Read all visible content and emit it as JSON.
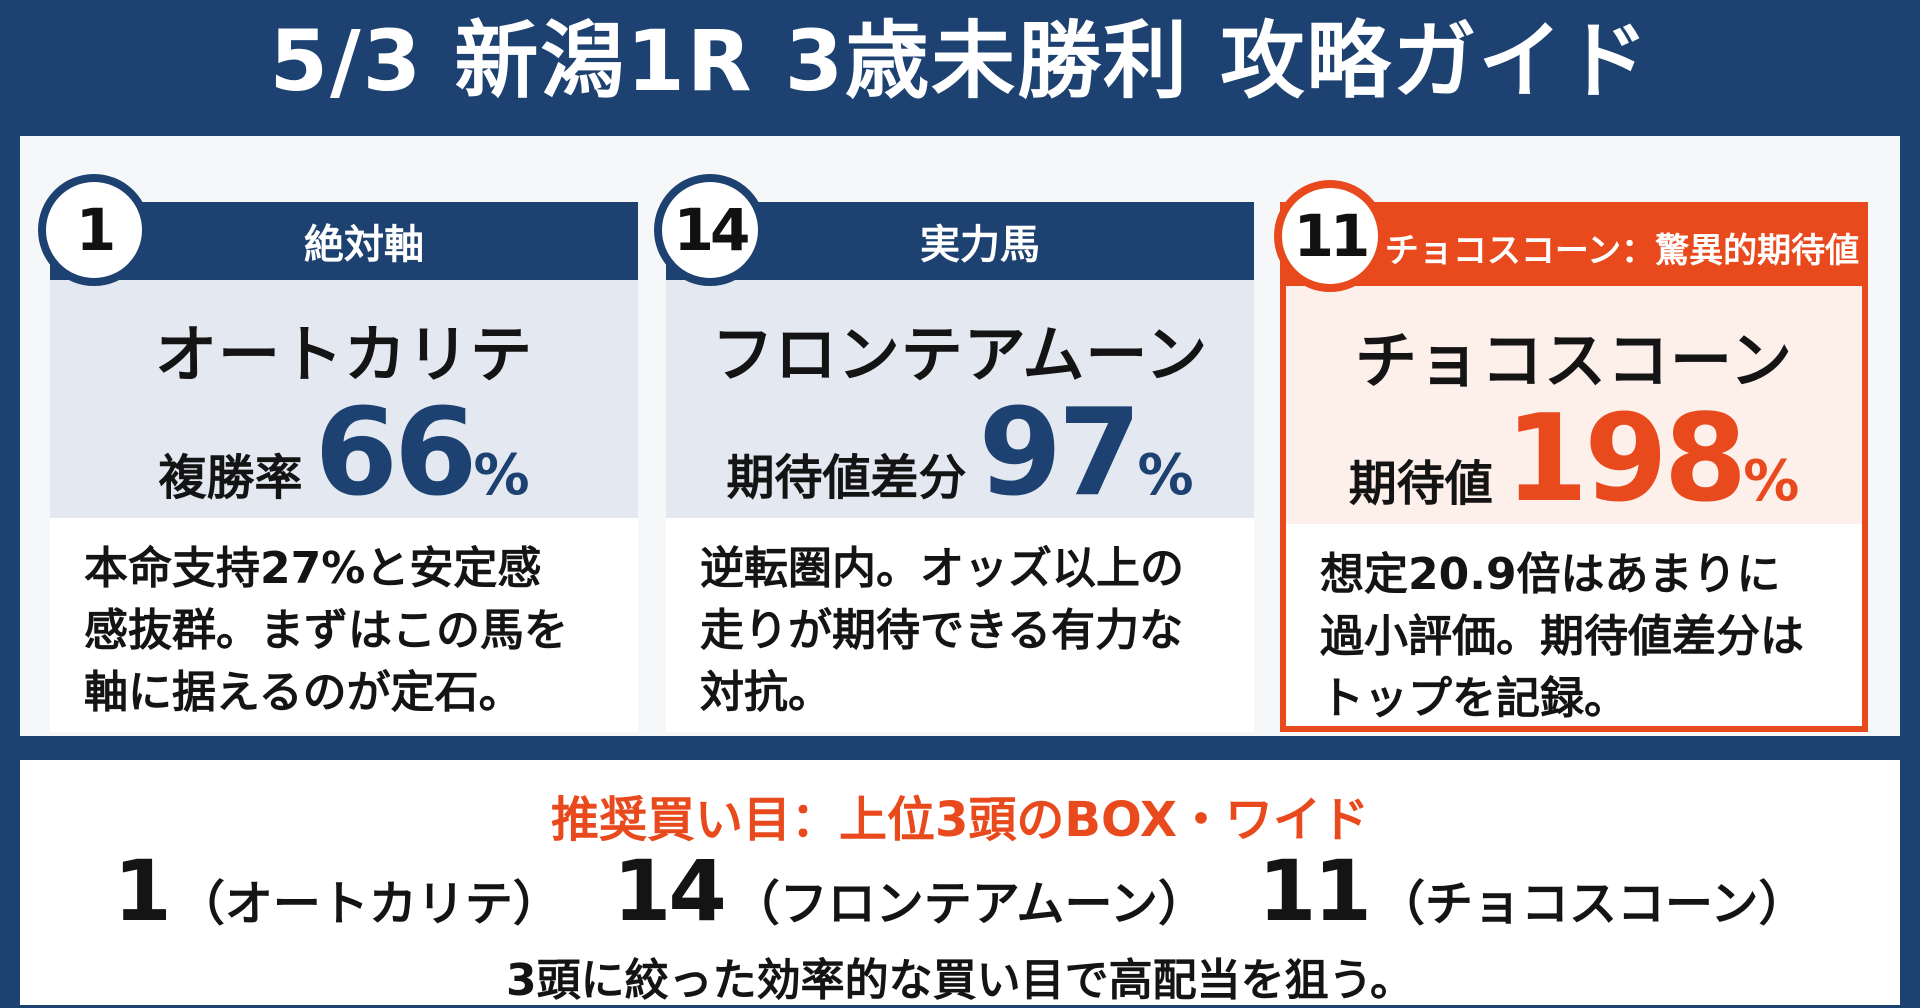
{
  "title": "5/3 新潟1R 3歳未勝利 攻略ガイド",
  "colors": {
    "navy": "#1d4271",
    "accent": "#e94a1d"
  },
  "cards": [
    {
      "number": "1",
      "header": "絶対軸",
      "name": "オートカリテ",
      "stat_label": "複勝率",
      "stat_value": "66",
      "stat_unit": "%",
      "description_lines": [
        "本命支持27%と安定感",
        "感抜群。まずはこの馬を",
        "軸に据えるのが定石。"
      ]
    },
    {
      "number": "14",
      "header": "実力馬",
      "name": "フロンテアムーン",
      "stat_label": "期待値差分",
      "stat_value": "97",
      "stat_unit": "%",
      "description_lines": [
        "逆転圏内。オッズ以上の",
        "走りが期待できる有力な",
        "対抗。"
      ]
    },
    {
      "number": "11",
      "header": "チョコスコーン：驚異的期待値",
      "name": "チョコスコーン",
      "stat_label": "期待値",
      "stat_value": "198",
      "stat_unit": "%",
      "description_lines": [
        "想定20.9倍はあまりに",
        "過小評価。期待値差分は",
        "トップを記録。"
      ]
    }
  ],
  "recommendation": {
    "heading": "推奨買い目：上位3頭のBOX・ワイド",
    "picks": [
      {
        "number": "1",
        "name": "（オートカリテ）"
      },
      {
        "number": "14",
        "name": "（フロンテアムーン）"
      },
      {
        "number": "11",
        "name": "（チョコスコーン）"
      }
    ],
    "note": "3頭に絞った効率的な買い目で高配当を狙う。"
  }
}
